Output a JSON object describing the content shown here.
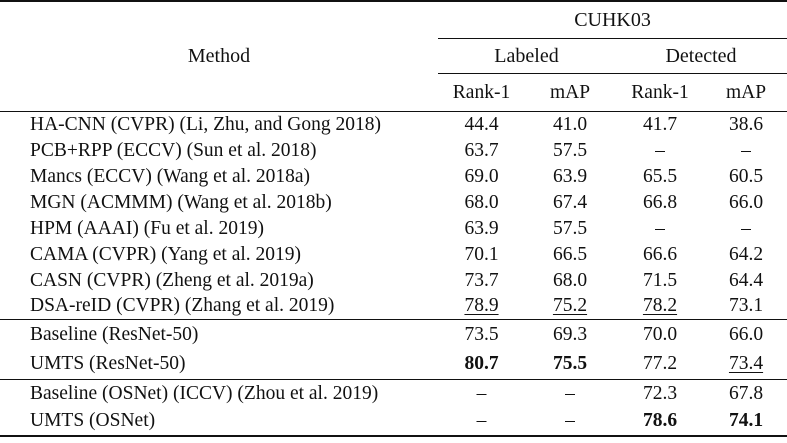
{
  "colors": {
    "text": "#111111",
    "background": "#ffffff",
    "rule": "#111111"
  },
  "table": {
    "header": {
      "method_label": "Method",
      "group_label": "CUHK03",
      "subgroups": [
        "Labeled",
        "Detected"
      ],
      "metrics": [
        "Rank-1",
        "mAP",
        "Rank-1",
        "mAP"
      ]
    },
    "sections": [
      {
        "rows": [
          {
            "method": "HA-CNN (CVPR) (Li, Zhu, and Gong 2018)",
            "values": [
              {
                "text": "44.4"
              },
              {
                "text": "41.0"
              },
              {
                "text": "41.7"
              },
              {
                "text": "38.6"
              }
            ]
          },
          {
            "method": "PCB+RPP (ECCV) (Sun et al. 2018)",
            "values": [
              {
                "text": "63.7"
              },
              {
                "text": "57.5"
              },
              {
                "text": "–"
              },
              {
                "text": "–"
              }
            ]
          },
          {
            "method": "Mancs (ECCV) (Wang et al. 2018a)",
            "values": [
              {
                "text": "69.0"
              },
              {
                "text": "63.9"
              },
              {
                "text": "65.5"
              },
              {
                "text": "60.5"
              }
            ]
          },
          {
            "method": "MGN (ACMMM) (Wang et al. 2018b)",
            "values": [
              {
                "text": "68.0"
              },
              {
                "text": "67.4"
              },
              {
                "text": "66.8"
              },
              {
                "text": "66.0"
              }
            ]
          },
          {
            "method": "HPM (AAAI) (Fu et al. 2019)",
            "values": [
              {
                "text": "63.9"
              },
              {
                "text": "57.5"
              },
              {
                "text": "–"
              },
              {
                "text": "–"
              }
            ]
          },
          {
            "method": "CAMA (CVPR) (Yang et al. 2019)",
            "values": [
              {
                "text": "70.1"
              },
              {
                "text": "66.5"
              },
              {
                "text": "66.6"
              },
              {
                "text": "64.2"
              }
            ]
          },
          {
            "method": "CASN (CVPR) (Zheng et al. 2019a)",
            "values": [
              {
                "text": "73.7"
              },
              {
                "text": "68.0"
              },
              {
                "text": "71.5"
              },
              {
                "text": "64.4"
              }
            ]
          },
          {
            "method": "DSA-reID (CVPR) (Zhang et al. 2019)",
            "values": [
              {
                "text": "78.9",
                "underline": true
              },
              {
                "text": "75.2",
                "underline": true
              },
              {
                "text": "78.2",
                "underline": true
              },
              {
                "text": "73.1"
              }
            ]
          }
        ]
      },
      {
        "rows": [
          {
            "method": "Baseline (ResNet-50)",
            "values": [
              {
                "text": "73.5"
              },
              {
                "text": "69.3"
              },
              {
                "text": "70.0"
              },
              {
                "text": "66.0"
              }
            ]
          },
          {
            "method": "UMTS (ResNet-50)",
            "values": [
              {
                "text": "80.7",
                "bold": true
              },
              {
                "text": "75.5",
                "bold": true
              },
              {
                "text": "77.2"
              },
              {
                "text": "73.4",
                "underline": true
              }
            ]
          }
        ]
      },
      {
        "rows": [
          {
            "method": "Baseline (OSNet) (ICCV) (Zhou et al. 2019)",
            "values": [
              {
                "text": "–"
              },
              {
                "text": "–"
              },
              {
                "text": "72.3"
              },
              {
                "text": "67.8"
              }
            ]
          },
          {
            "method": "UMTS (OSNet)",
            "values": [
              {
                "text": "–"
              },
              {
                "text": "–"
              },
              {
                "text": "78.6",
                "bold": true
              },
              {
                "text": "74.1",
                "bold": true
              }
            ]
          }
        ]
      }
    ]
  }
}
